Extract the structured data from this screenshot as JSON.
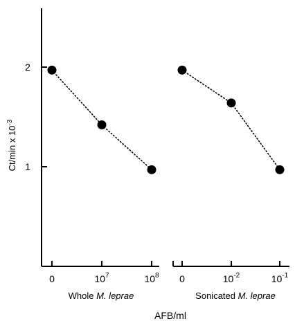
{
  "chart_data": {
    "type": "scatter",
    "ylabel_parts": {
      "base": "Ct/min x 10",
      "exp": "-3"
    },
    "xlabel": "AFB/ml",
    "ylim": [
      0,
      2.6
    ],
    "yticks": [
      1,
      2
    ],
    "ytick_labels": [
      "1",
      "2"
    ],
    "grid": false,
    "legend": "none",
    "panels": [
      {
        "label_prefix": "Whole ",
        "label_species": "M. leprae",
        "ticks": [
          {
            "base": "0",
            "exp": ""
          },
          {
            "base": "10",
            "exp": "7"
          },
          {
            "base": "10",
            "exp": "8"
          }
        ],
        "y": [
          1.97,
          1.42,
          0.97
        ]
      },
      {
        "label_prefix": "Sonicated ",
        "label_species": "M. leprae",
        "ticks": [
          {
            "base": "0",
            "exp": ""
          },
          {
            "base": "10",
            "exp": "-2"
          },
          {
            "base": "10",
            "exp": "-1"
          }
        ],
        "y": [
          1.97,
          1.64,
          0.97
        ]
      }
    ]
  }
}
